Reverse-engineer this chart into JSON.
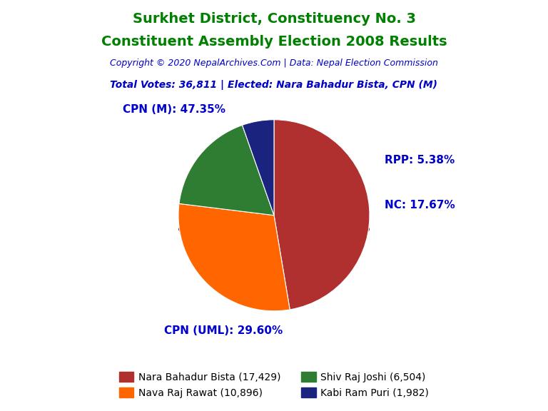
{
  "title_line1": "Surkhet District, Constituency No. 3",
  "title_line2": "Constituent Assembly Election 2008 Results",
  "title_color": "#008000",
  "copyright_text": "Copyright © 2020 NepalArchives.Com | Data: Nepal Election Commission",
  "copyright_color": "#0000CD",
  "info_text": "Total Votes: 36,811 | Elected: Nara Bahadur Bista, CPN (M)",
  "info_color": "#0000CD",
  "slices": [
    {
      "label": "CPN (M)",
      "value": 17429,
      "pct": "47.35",
      "color": "#B03030"
    },
    {
      "label": "CPN (UML)",
      "value": 10896,
      "pct": "29.60",
      "color": "#FF6600"
    },
    {
      "label": "NC",
      "value": 6504,
      "pct": "17.67",
      "color": "#2E7D32"
    },
    {
      "label": "RPP",
      "value": 1982,
      "pct": "5.38",
      "color": "#1A237E"
    }
  ],
  "legend_entries": [
    {
      "label": "Nara Bahadur Bista (17,429)",
      "color": "#B03030"
    },
    {
      "label": "Nava Raj Rawat (10,896)",
      "color": "#FF6600"
    },
    {
      "label": "Shiv Raj Joshi (6,504)",
      "color": "#2E7D32"
    },
    {
      "label": "Kabi Ram Puri (1,982)",
      "color": "#1A237E"
    }
  ],
  "label_color": "#0000CD",
  "label_fontsize": 11,
  "background_color": "#FFFFFF",
  "shadow_color": "#8B0000",
  "title_fontsize": 14
}
